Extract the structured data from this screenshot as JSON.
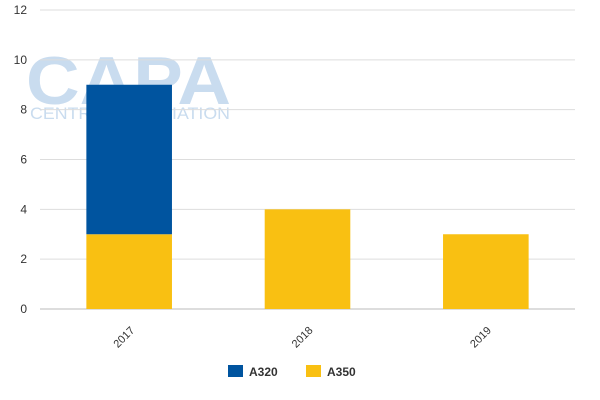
{
  "watermark": {
    "logo": "CAPA",
    "tagline": "CENTRE FOR AVIATION"
  },
  "chart_data": {
    "type": "bar",
    "stacked": true,
    "categories": [
      "2017",
      "2018",
      "2019"
    ],
    "series": [
      {
        "name": "A350",
        "values": [
          3,
          4,
          3
        ],
        "color": "#f9c012"
      },
      {
        "name": "A320",
        "values": [
          6,
          0,
          0
        ],
        "color": "#00549f"
      }
    ],
    "legend_order": [
      "A320",
      "A350"
    ],
    "ylim": [
      0,
      12
    ],
    "yticks": [
      0,
      2,
      4,
      6,
      8,
      10,
      12
    ],
    "grid": true,
    "legend_position": "bottom-center",
    "title": "",
    "xlabel": "",
    "ylabel": ""
  }
}
